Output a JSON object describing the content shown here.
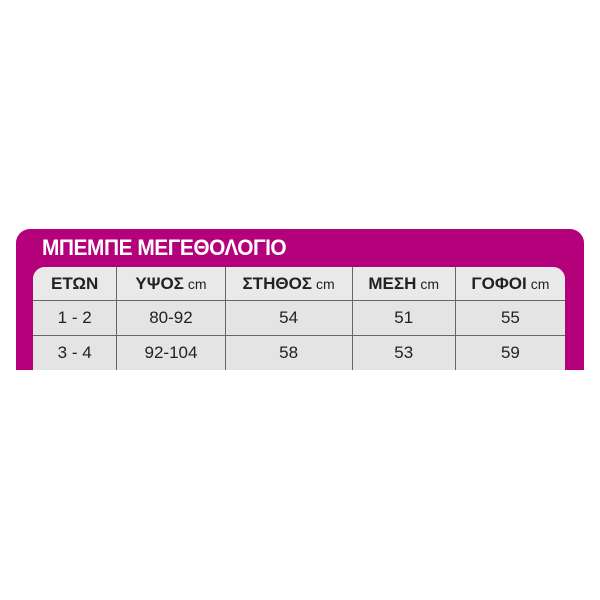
{
  "colors": {
    "brand": "#b4007a",
    "table_bg": "#e4e4e4"
  },
  "title": "ΜΠΕΜΠΕ ΜΕΓΕΘΟΛΟΓΙΟ",
  "columns": [
    {
      "label": "ΕΤΩΝ",
      "unit": ""
    },
    {
      "label": "ΥΨΟΣ",
      "unit": "cm"
    },
    {
      "label": "ΣΤΗΘΟΣ",
      "unit": "cm"
    },
    {
      "label": "ΜΕΣΗ",
      "unit": "cm"
    },
    {
      "label": "ΓΟΦΟΙ",
      "unit": "cm"
    }
  ],
  "rows": [
    [
      "1 - 2",
      "80-92",
      "54",
      "51",
      "55"
    ],
    [
      "3 - 4",
      "92-104",
      "58",
      "53",
      "59"
    ]
  ]
}
